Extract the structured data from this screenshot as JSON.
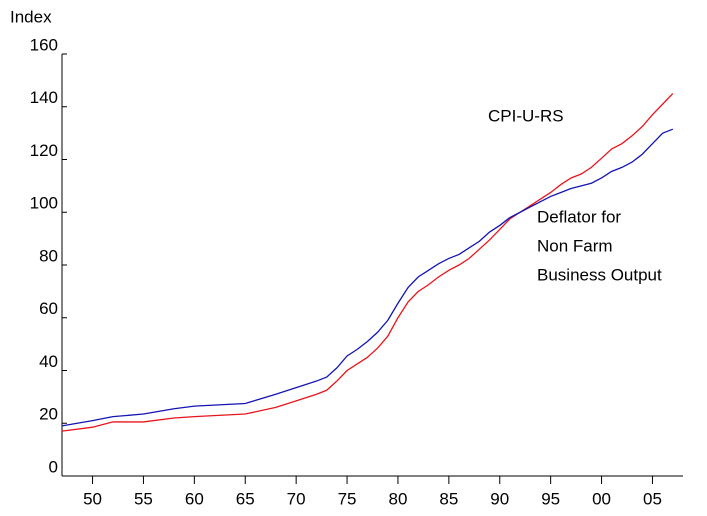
{
  "chart_data": {
    "type": "line",
    "y_axis_label": "Index",
    "x": [
      1947,
      1950,
      1952,
      1955,
      1958,
      1960,
      1965,
      1968,
      1970,
      1972,
      1973,
      1974,
      1975,
      1976,
      1977,
      1978,
      1979,
      1980,
      1981,
      1982,
      1983,
      1984,
      1985,
      1986,
      1987,
      1988,
      1989,
      1990,
      1991,
      1992,
      1993,
      1994,
      1995,
      1996,
      1997,
      1998,
      1999,
      2000,
      2001,
      2002,
      2003,
      2004,
      2005,
      2006,
      2007
    ],
    "series": [
      {
        "name": "CPI-U-RS",
        "color": "#e8141c",
        "values": [
          17,
          18.5,
          20.5,
          20.5,
          22,
          22.5,
          23.5,
          26,
          28.5,
          31,
          32.5,
          36,
          40,
          42.5,
          45,
          48.5,
          53,
          60,
          66,
          70,
          72.5,
          75.5,
          78,
          80,
          82.5,
          86,
          89.5,
          93.5,
          97.5,
          100,
          102.5,
          105,
          107.5,
          110.5,
          113,
          114.5,
          117,
          120.5,
          124,
          126,
          129,
          132.5,
          137,
          141,
          145
        ]
      },
      {
        "name": "Deflator for Non Farm Business Output",
        "color": "#1414b4",
        "values": [
          19,
          21,
          22.5,
          23.5,
          25.5,
          26.5,
          27.5,
          31,
          33.5,
          36,
          37.5,
          41,
          45.5,
          48,
          51,
          54.5,
          59,
          65.5,
          71.5,
          75.5,
          78,
          80.5,
          82.5,
          84,
          86.5,
          89,
          92.5,
          95,
          98,
          100,
          102,
          104,
          106,
          107.5,
          109,
          110,
          111,
          113,
          115.5,
          117,
          119,
          122,
          126,
          130,
          131.5
        ]
      }
    ],
    "annotations": [
      {
        "lines": [
          "CPI-U-RS"
        ],
        "color": "#e8141c"
      },
      {
        "lines": [
          "Deflator for",
          "Non Farm",
          "Business Output"
        ],
        "color": "#1414b4"
      }
    ],
    "xlim": [
      1947,
      2008
    ],
    "xticks": [
      {
        "value": 1950,
        "label": "50"
      },
      {
        "value": 1955,
        "label": "55"
      },
      {
        "value": 1960,
        "label": "60"
      },
      {
        "value": 1965,
        "label": "65"
      },
      {
        "value": 1970,
        "label": "70"
      },
      {
        "value": 1975,
        "label": "75"
      },
      {
        "value": 1980,
        "label": "80"
      },
      {
        "value": 1985,
        "label": "85"
      },
      {
        "value": 1990,
        "label": "90"
      },
      {
        "value": 1995,
        "label": "95"
      },
      {
        "value": 2000,
        "label": "00"
      },
      {
        "value": 2005,
        "label": "05"
      }
    ],
    "ylim": [
      0,
      160
    ],
    "yticks": [
      0,
      20,
      40,
      60,
      80,
      100,
      120,
      140,
      160
    ],
    "grid": false
  }
}
